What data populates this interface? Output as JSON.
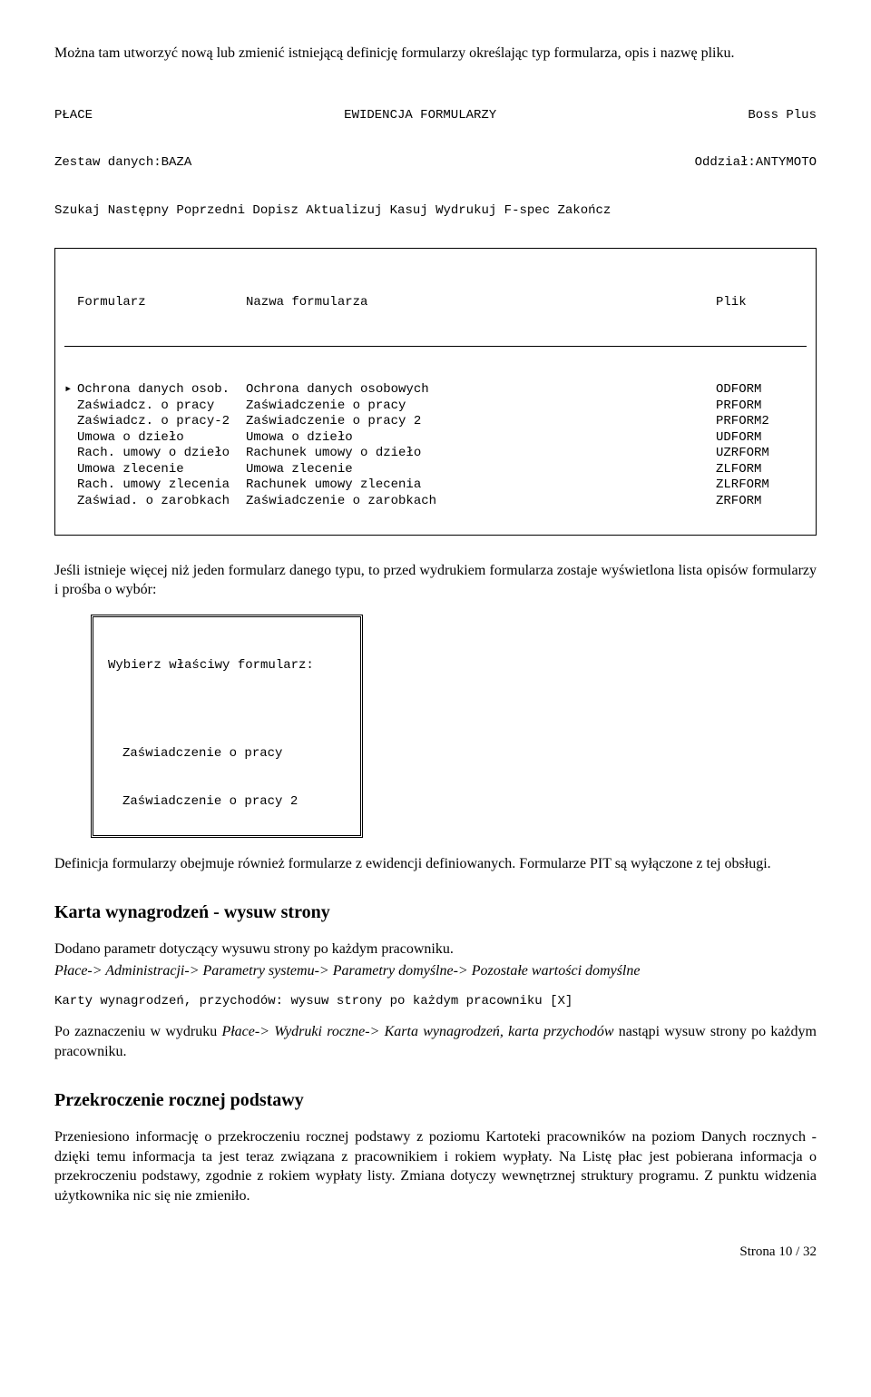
{
  "intro": "Można tam utworzyć nową lub zmienić istniejącą definicję formularzy określając typ formularza, opis i nazwę pliku.",
  "screen": {
    "title_left": "PŁACE",
    "title_center": "EWIDENCJA FORMULARZY",
    "title_right": "Boss Plus",
    "line2_left": "Zestaw danych:BAZA",
    "line2_right": "Oddział:ANTYMOTO",
    "menu": "Szukaj Następny Poprzedni Dopisz Aktualizuj Kasuj Wydrukuj F-spec Zakończ",
    "col1": "Formularz",
    "col2": "Nazwa formularza",
    "col3": "Plik",
    "rows": [
      {
        "c1": "Ochrona danych osob.",
        "c2": "Ochrona danych osobowych",
        "c3": "ODFORM",
        "ptr": true
      },
      {
        "c1": "Zaświadcz. o pracy",
        "c2": "Zaświadczenie o pracy",
        "c3": "PRFORM",
        "ptr": false
      },
      {
        "c1": "Zaświadcz. o pracy-2",
        "c2": "Zaświadczenie o pracy 2",
        "c3": "PRFORM2",
        "ptr": false
      },
      {
        "c1": "Umowa o dzieło",
        "c2": "Umowa o dzieło",
        "c3": "UDFORM",
        "ptr": false
      },
      {
        "c1": "Rach. umowy o dzieło",
        "c2": "Rachunek umowy o dzieło",
        "c3": "UZRFORM",
        "ptr": false
      },
      {
        "c1": "Umowa zlecenie",
        "c2": "Umowa zlecenie",
        "c3": "ZLFORM",
        "ptr": false
      },
      {
        "c1": "Rach. umowy zlecenia",
        "c2": "Rachunek umowy zlecenia",
        "c3": "ZLRFORM",
        "ptr": false
      },
      {
        "c1": "Zaświad. o zarobkach",
        "c2": "Zaświadczenie o zarobkach",
        "c3": "ZRFORM",
        "ptr": false
      }
    ]
  },
  "middle_para": "Jeśli istnieje więcej niż jeden formularz danego typu, to przed wydrukiem formularza zostaje wyświetlona lista opisów formularzy i prośba o wybór:",
  "dialog": {
    "title": "Wybierz właściwy formularz:",
    "opt1": "Zaświadczenie o pracy",
    "opt2": "Zaświadczenie o pracy 2"
  },
  "after_dialog": "Definicja formularzy obejmuje również formularze z ewidencji definiowanych. Formularze PIT są wyłączone z tej obsługi.",
  "sec1": {
    "heading": "Karta wynagrodzeń - wysuw strony",
    "p1": "Dodano parametr dotyczący wysuwu strony po każdym pracowniku.",
    "p2": "Płace-> Administracji-> Parametry systemu-> Parametry domyślne-> Pozostałe wartości domyślne",
    "mono": "Karty wynagrodzeń, przychodów: wysuw strony po każdym pracowniku [X]",
    "p3a": "Po zaznaczeniu w wydruku ",
    "p3b": "Płace-> Wydruki roczne-> Karta wynagrodzeń, karta przychodów",
    "p3c": " nastąpi wysuw strony po każdym pracowniku."
  },
  "sec2": {
    "heading": "Przekroczenie rocznej podstawy",
    "p1": "Przeniesiono informację o przekroczeniu rocznej podstawy z poziomu Kartoteki pracowników na poziom Danych rocznych - dzięki temu informacja ta jest teraz związana z pracownikiem i rokiem wypłaty. Na Listę płac jest pobierana informacja o przekroczeniu podstawy, zgodnie z rokiem wypłaty listy. Zmiana dotyczy wewnętrznej struktury programu. Z punktu widzenia użytkownika nic się nie zmieniło."
  },
  "page_number": "Strona 10 / 32"
}
